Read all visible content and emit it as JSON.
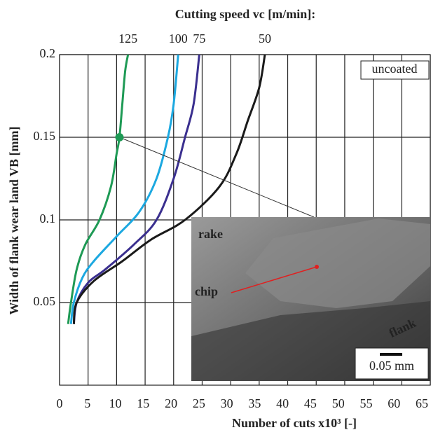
{
  "chart_data": {
    "type": "line",
    "title": "Cutting speed vc [m/min]:",
    "x_label": "Number of cuts x10³ [-]",
    "y_label": "Width of flank wear land VB [mm]",
    "xlim": [
      0,
      65
    ],
    "xticks": [
      0,
      5,
      10,
      15,
      20,
      25,
      30,
      35,
      40,
      45,
      50,
      55,
      60,
      65
    ],
    "ylim": [
      0,
      0.2
    ],
    "yticks": [
      0.05,
      0.1,
      0.15,
      0.2
    ],
    "grid": true,
    "box_label": "uncoated",
    "series": [
      {
        "name": "125",
        "color": "#1e9a55",
        "x": [
          1.5,
          2,
          3,
          4.5,
          7,
          9,
          10,
          10.5,
          11,
          11.5,
          12
        ],
        "values": [
          0.037,
          0.05,
          0.07,
          0.085,
          0.1,
          0.12,
          0.14,
          0.15,
          0.17,
          0.19,
          0.2
        ]
      },
      {
        "name": "100",
        "color": "#1ca8e0",
        "x": [
          2,
          2.5,
          4,
          6,
          10,
          14,
          17,
          19,
          20,
          20.8
        ],
        "values": [
          0.037,
          0.05,
          0.065,
          0.075,
          0.09,
          0.105,
          0.125,
          0.15,
          0.17,
          0.2
        ]
      },
      {
        "name": "75",
        "color": "#3a2f8f",
        "x": [
          2.5,
          3,
          5,
          8,
          13,
          17,
          20,
          22,
          23.5,
          24.5
        ],
        "values": [
          0.037,
          0.05,
          0.062,
          0.07,
          0.085,
          0.1,
          0.125,
          0.15,
          0.17,
          0.2
        ]
      },
      {
        "name": "50",
        "color": "#1a1a1a",
        "x": [
          2.5,
          3,
          6,
          11,
          16,
          22,
          28,
          31,
          33,
          35,
          36
        ],
        "values": [
          0.037,
          0.05,
          0.063,
          0.075,
          0.088,
          0.1,
          0.12,
          0.14,
          0.16,
          0.18,
          0.2
        ]
      }
    ],
    "highlight": {
      "x": 10.5,
      "y": 0.15,
      "color": "#1e9a55"
    },
    "inset": {
      "labels": [
        "rake",
        "chip",
        "flank"
      ],
      "scale_label": "0.05 mm"
    }
  }
}
